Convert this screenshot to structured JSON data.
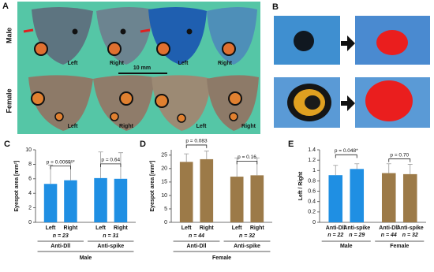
{
  "panel_a": {
    "label": "A",
    "scale_bar": "10 mm",
    "rows": [
      {
        "label": "Male",
        "sides": [
          "Left",
          "Right",
          "Left",
          "Right"
        ]
      },
      {
        "label": "Female",
        "sides": [
          "Left",
          "Right",
          "Left",
          "Right"
        ]
      }
    ]
  },
  "panel_b": {
    "label": "B"
  },
  "chart_data": [
    {
      "type": "bar",
      "panel": "C",
      "y_label": "Eyespot area [mm²]",
      "color": "#1f8fe3",
      "categories": [
        "Left",
        "Right",
        "Left",
        "Right"
      ],
      "values": [
        5.3,
        5.8,
        6.1,
        6.0
      ],
      "errors": [
        2.6,
        2.4,
        3.6,
        3.6
      ],
      "groups": [
        {
          "n": "n = 23",
          "label": "Anti-Dll",
          "p": "p = 0.0069**"
        },
        {
          "n": "n = 31",
          "label": "Anti-spike",
          "p": "p = 0.64"
        }
      ],
      "footer": "Male",
      "ylim": [
        0,
        10
      ],
      "yticks": [
        0,
        2,
        4,
        6,
        8,
        10
      ]
    },
    {
      "type": "bar",
      "panel": "D",
      "y_label": "Eyespot area [mm²]",
      "color": "#9c7a48",
      "categories": [
        "Left",
        "Right",
        "Left",
        "Right"
      ],
      "values": [
        22.5,
        23.5,
        17.0,
        17.5
      ],
      "errors": [
        3.0,
        3.0,
        7.0,
        6.5
      ],
      "groups": [
        {
          "n": "n = 44",
          "label": "Anti-Dll",
          "p": "p = 0.083"
        },
        {
          "n": "n = 32",
          "label": "Anti-spike",
          "p": "p = 0.16"
        }
      ],
      "footer": "Female",
      "ylim": [
        0,
        27
      ],
      "yticks": [
        0,
        5,
        10,
        15,
        20,
        25
      ]
    },
    {
      "type": "bar",
      "panel": "E",
      "y_label": "Left / Right",
      "colors": [
        "#1f8fe3",
        "#1f8fe3",
        "#9c7a48",
        "#9c7a48"
      ],
      "categories": [
        "Anti-Dll",
        "Anti-spike",
        "Anti-Dll",
        "Anti-spike"
      ],
      "bar_notes": [
        "n = 22",
        "n = 29",
        "n = 44",
        "n = 32"
      ],
      "values": [
        0.91,
        1.03,
        0.95,
        0.93
      ],
      "errors": [
        0.19,
        0.1,
        0.18,
        0.19
      ],
      "groups": [
        {
          "label": "Male",
          "p": "p = 0.048*"
        },
        {
          "label": "Female",
          "p": "p = 0.70"
        }
      ],
      "ylim": [
        0,
        1.4
      ],
      "yticks": [
        0,
        0.2,
        0.4,
        0.6,
        0.8,
        1,
        1.2,
        1.4
      ]
    }
  ]
}
